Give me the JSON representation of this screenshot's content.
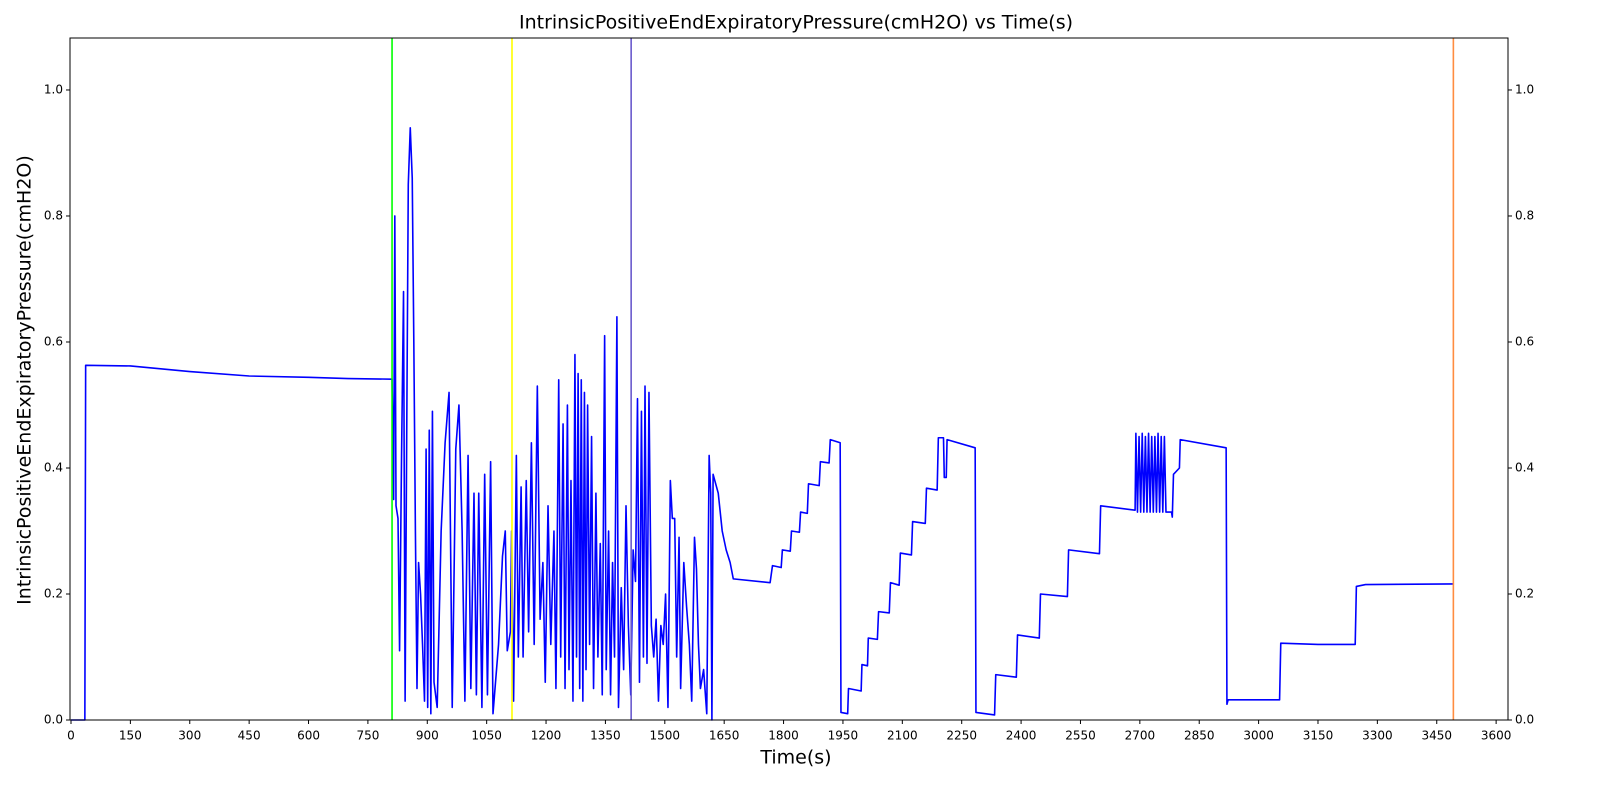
{
  "chart_data": {
    "type": "line",
    "title": "IntrinsicPositiveEndExpiratoryPressure(cmH2O) vs Time(s)",
    "xlabel": "Time(s)",
    "ylabel": "IntrinsicPositiveEndExpiratoryPressure(cmH2O)",
    "xlim": [
      0,
      3630
    ],
    "ylim": [
      0,
      1.0825
    ],
    "xticks": [
      0,
      150,
      300,
      450,
      600,
      750,
      900,
      1050,
      1200,
      1350,
      1500,
      1650,
      1800,
      1950,
      2100,
      2250,
      2400,
      2550,
      2700,
      2850,
      3000,
      3150,
      3300,
      3450,
      3600
    ],
    "yticks": [
      {
        "value": 0,
        "label": "0.0"
      },
      0.2,
      0.4,
      0.6,
      0.8,
      {
        "value": 1,
        "label": "1.0"
      }
    ],
    "vlines": [
      {
        "x": 811,
        "color": "#00ff00"
      },
      {
        "x": 1114,
        "color": "#ffff00"
      },
      {
        "x": 1415,
        "color": "#6a5acd"
      },
      {
        "x": 3492,
        "color": "#ff8c40"
      }
    ],
    "x": [
      0,
      35,
      37,
      150,
      300,
      450,
      600,
      700,
      811,
      815,
      818,
      821,
      826,
      830,
      835,
      840,
      844,
      848,
      852,
      857,
      862,
      866,
      870,
      874,
      878,
      883,
      888,
      893,
      897,
      901,
      905,
      909,
      913,
      917,
      925,
      935,
      945,
      955,
      963,
      972,
      980,
      988,
      995,
      1003,
      1010,
      1018,
      1024,
      1030,
      1038,
      1045,
      1052,
      1060,
      1066,
      1080,
      1090,
      1097,
      1102,
      1110,
      1113,
      1118,
      1125,
      1130,
      1137,
      1142,
      1150,
      1156,
      1163,
      1170,
      1178,
      1185,
      1192,
      1198,
      1205,
      1212,
      1220,
      1225,
      1232,
      1237,
      1243,
      1248,
      1254,
      1258,
      1263,
      1268,
      1273,
      1277,
      1281,
      1285,
      1289,
      1293,
      1297,
      1301,
      1305,
      1310,
      1315,
      1320,
      1326,
      1331,
      1337,
      1342,
      1348,
      1352,
      1358,
      1363,
      1368,
      1373,
      1379,
      1383,
      1390,
      1396,
      1402,
      1408,
      1414,
      1420,
      1426,
      1431,
      1436,
      1441,
      1446,
      1450,
      1455,
      1460,
      1466,
      1472,
      1478,
      1484,
      1490,
      1496,
      1502,
      1508,
      1514,
      1519,
      1525,
      1530,
      1536,
      1540,
      1548,
      1555,
      1562,
      1568,
      1575,
      1580,
      1585,
      1590,
      1598,
      1606,
      1612,
      1616,
      1619,
      1622,
      1635,
      1645,
      1655,
      1665,
      1673,
      1766,
      1772,
      1794,
      1797,
      1817,
      1820,
      1840,
      1843,
      1860,
      1863,
      1890,
      1893,
      1915,
      1918,
      1943,
      1945,
      1962,
      1964,
      1996,
      1998,
      2012,
      2014,
      2037,
      2040,
      2067,
      2070,
      2092,
      2095,
      2123,
      2126,
      2158,
      2161,
      2188,
      2191,
      2204,
      2206,
      2211,
      2213,
      2284,
      2286,
      2333,
      2336,
      2388,
      2391,
      2446,
      2449,
      2517,
      2520,
      2598,
      2601,
      2688,
      2690,
      2694,
      2698,
      2702,
      2706,
      2710,
      2714,
      2718,
      2722,
      2726,
      2730,
      2734,
      2738,
      2742,
      2746,
      2750,
      2754,
      2758,
      2762,
      2766,
      2780,
      2782,
      2785,
      2800,
      2802,
      2918,
      2920,
      2923,
      3053,
      3056,
      3150,
      3244,
      3247,
      3270,
      3492
    ],
    "series": [
      {
        "color": "#0000ff",
        "values": [
          0,
          0,
          0.563,
          0.562,
          0.553,
          0.546,
          0.544,
          0.542,
          0.541,
          0.35,
          0.8,
          0.34,
          0.32,
          0.11,
          0.42,
          0.68,
          0.03,
          0.45,
          0.85,
          0.94,
          0.86,
          0.6,
          0.3,
          0.05,
          0.25,
          0.2,
          0.12,
          0.03,
          0.43,
          0.02,
          0.46,
          0.01,
          0.49,
          0.06,
          0.02,
          0.3,
          0.44,
          0.52,
          0.02,
          0.43,
          0.5,
          0.3,
          0.03,
          0.42,
          0.05,
          0.36,
          0.04,
          0.36,
          0.02,
          0.39,
          0.04,
          0.41,
          0.01,
          0.12,
          0.26,
          0.3,
          0.11,
          0.14,
          0.3,
          0.03,
          0.42,
          0.1,
          0.37,
          0.1,
          0.38,
          0.14,
          0.44,
          0.12,
          0.53,
          0.16,
          0.25,
          0.06,
          0.34,
          0.12,
          0.3,
          0.05,
          0.54,
          0.1,
          0.47,
          0.05,
          0.5,
          0.08,
          0.38,
          0.03,
          0.58,
          0.1,
          0.55,
          0.05,
          0.54,
          0.03,
          0.52,
          0.08,
          0.5,
          0.12,
          0.45,
          0.05,
          0.36,
          0.1,
          0.28,
          0.04,
          0.61,
          0.08,
          0.3,
          0.04,
          0.25,
          0.1,
          0.64,
          0.02,
          0.21,
          0.08,
          0.34,
          0.15,
          0.04,
          0.27,
          0.22,
          0.51,
          0.06,
          0.49,
          0.1,
          0.53,
          0.09,
          0.52,
          0.15,
          0.1,
          0.16,
          0.03,
          0.15,
          0.12,
          0.2,
          0.02,
          0.38,
          0.32,
          0.32,
          0.1,
          0.29,
          0.05,
          0.25,
          0.18,
          0.12,
          0.03,
          0.29,
          0.24,
          0.12,
          0.05,
          0.08,
          0.01,
          0.42,
          0.36,
          0,
          0.39,
          0.36,
          0.3,
          0.27,
          0.25,
          0.224,
          0.218,
          0.245,
          0.242,
          0.27,
          0.268,
          0.3,
          0.298,
          0.33,
          0.328,
          0.375,
          0.372,
          0.41,
          0.408,
          0.445,
          0.44,
          0.012,
          0.01,
          0.05,
          0.046,
          0.088,
          0.086,
          0.13,
          0.128,
          0.172,
          0.17,
          0.218,
          0.214,
          0.265,
          0.262,
          0.315,
          0.312,
          0.368,
          0.365,
          0.448,
          0.448,
          0.385,
          0.385,
          0.445,
          0.432,
          0.012,
          0.008,
          0.072,
          0.068,
          0.135,
          0.13,
          0.2,
          0.196,
          0.27,
          0.264,
          0.34,
          0.333,
          0.455,
          0.33,
          0.45,
          0.33,
          0.455,
          0.33,
          0.45,
          0.33,
          0.455,
          0.33,
          0.45,
          0.33,
          0.45,
          0.33,
          0.455,
          0.33,
          0.45,
          0.33,
          0.45,
          0.33,
          0.33,
          0.322,
          0.39,
          0.4,
          0.445,
          0.432,
          0.025,
          0.032,
          0.032,
          0.122,
          0.12,
          0.12,
          0.212,
          0.215,
          0.216
        ]
      }
    ]
  }
}
